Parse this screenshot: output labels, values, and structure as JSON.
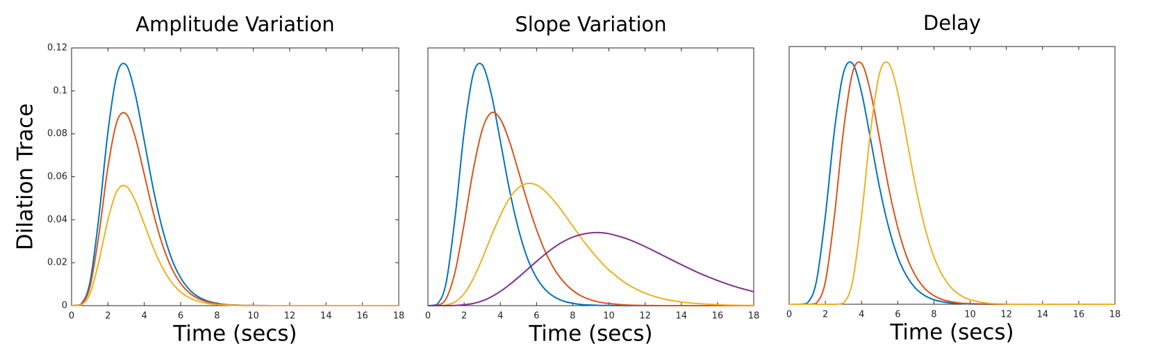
{
  "chart_data": [
    {
      "type": "line",
      "title": "Amplitude Variation",
      "xlabel": "Time (secs)",
      "ylabel": "Dilation Trace",
      "x": [
        0,
        0.5,
        1,
        1.5,
        2,
        2.5,
        3,
        3.5,
        4,
        4.5,
        5,
        5.5,
        6,
        6.5,
        7,
        7.5,
        8,
        8.5,
        9,
        9.5,
        10,
        11,
        12,
        13,
        14,
        15,
        16,
        17,
        18
      ],
      "series": [
        {
          "color": "#0072BD",
          "values": [
            0,
            0.0005,
            0.0104,
            0.0411,
            0.0808,
            0.1077,
            0.1121,
            0.0986,
            0.0767,
            0.0542,
            0.0357,
            0.022,
            0.013,
            0.0073,
            0.004,
            0.0021,
            0.0011,
            0.0005,
            0.0003,
            0.0001,
            0.0001,
            0,
            0,
            0,
            0,
            0,
            0,
            0,
            0
          ]
        },
        {
          "color": "#D95319",
          "values": [
            0,
            0.0004,
            0.0083,
            0.0328,
            0.0644,
            0.0858,
            0.0893,
            0.0786,
            0.0611,
            0.0432,
            0.0284,
            0.0176,
            0.0104,
            0.0058,
            0.0032,
            0.0017,
            0.0009,
            0.0004,
            0.0002,
            0.0001,
            0,
            0,
            0,
            0,
            0,
            0,
            0,
            0,
            0
          ]
        },
        {
          "color": "#EDB120",
          "values": [
            0,
            0.0002,
            0.0052,
            0.0204,
            0.04,
            0.0534,
            0.0556,
            0.0489,
            0.038,
            0.0269,
            0.0177,
            0.0109,
            0.0064,
            0.0036,
            0.002,
            0.001,
            0.0005,
            0.0003,
            0.0001,
            0.0001,
            0,
            0,
            0,
            0,
            0,
            0,
            0,
            0,
            0
          ]
        }
      ],
      "xlim": [
        0,
        18
      ],
      "xticks": [
        0,
        2,
        4,
        6,
        8,
        10,
        12,
        14,
        16,
        18
      ],
      "ylim": [
        0,
        0.12
      ],
      "yticks": [
        0,
        0.02,
        0.04,
        0.06,
        0.08,
        0.1,
        0.12
      ]
    },
    {
      "type": "line",
      "title": "Slope Variation",
      "xlabel": "Time (secs)",
      "x": [
        0,
        0.5,
        1,
        1.5,
        2,
        2.5,
        3,
        3.5,
        4,
        4.5,
        5,
        5.5,
        6,
        6.5,
        7,
        7.5,
        8,
        8.5,
        9,
        9.5,
        10,
        11,
        12,
        13,
        14,
        15,
        16,
        17,
        18
      ],
      "series": [
        {
          "color": "#0072BD",
          "values": [
            0,
            0.0005,
            0.0104,
            0.0411,
            0.0808,
            0.1077,
            0.1121,
            0.0986,
            0.0767,
            0.0542,
            0.0357,
            0.022,
            0.013,
            0.0073,
            0.004,
            0.0021,
            0.0011,
            0.0005,
            0.0003,
            0.0001,
            0.0001,
            0,
            0,
            0,
            0,
            0,
            0,
            0,
            0
          ]
        },
        {
          "color": "#D95319",
          "values": [
            0,
            0.0001,
            0.0032,
            0.0157,
            0.038,
            0.063,
            0.0819,
            0.0898,
            0.0869,
            0.0766,
            0.0626,
            0.0482,
            0.0354,
            0.0248,
            0.0168,
            0.0111,
            0.0071,
            0.0044,
            0.0027,
            0.0016,
            0.001,
            0.0003,
            0.0001,
            0,
            0,
            0,
            0,
            0,
            0
          ]
        },
        {
          "color": "#EDB120",
          "values": [
            0,
            0,
            0.0003,
            0.0017,
            0.0056,
            0.0125,
            0.0218,
            0.0323,
            0.042,
            0.0499,
            0.0549,
            0.0569,
            0.0562,
            0.0531,
            0.0485,
            0.043,
            0.0371,
            0.0312,
            0.0258,
            0.0209,
            0.0166,
            0.0101,
            0.0058,
            0.0032,
            0.0017,
            0.0009,
            0.0005,
            0.0002,
            0.0001
          ]
        },
        {
          "color": "#7E2F8E",
          "values": [
            0,
            0,
            0,
            0.0001,
            0.0004,
            0.001,
            0.0022,
            0.0041,
            0.0066,
            0.0097,
            0.0132,
            0.0169,
            0.0206,
            0.0241,
            0.0273,
            0.0299,
            0.0319,
            0.0332,
            0.0339,
            0.034,
            0.0335,
            0.0311,
            0.0275,
            0.0233,
            0.0191,
            0.0151,
            0.0117,
            0.0088,
            0.0065
          ]
        }
      ],
      "xlim": [
        0,
        18
      ],
      "xticks": [
        0,
        2,
        4,
        6,
        8,
        10,
        12,
        14,
        16,
        18
      ],
      "ylim": [
        0,
        0.12
      ]
    },
    {
      "type": "line",
      "title": "Delay",
      "xlabel": "Time (secs)",
      "x": [
        0,
        0.5,
        1,
        1.5,
        2,
        2.5,
        3,
        3.5,
        4,
        4.5,
        5,
        5.5,
        6,
        6.5,
        7,
        7.5,
        8,
        8.5,
        9,
        9.5,
        10,
        11,
        12,
        13,
        14,
        15,
        16,
        17,
        18
      ],
      "series": [
        {
          "color": "#0072BD",
          "values": [
            0,
            0,
            0.0005,
            0.0104,
            0.0411,
            0.0808,
            0.1077,
            0.1121,
            0.0986,
            0.0767,
            0.0542,
            0.0357,
            0.022,
            0.013,
            0.0073,
            0.004,
            0.0021,
            0.0011,
            0.0005,
            0.0003,
            0.0001,
            0,
            0,
            0,
            0,
            0,
            0,
            0,
            0
          ]
        },
        {
          "color": "#D95319",
          "values": [
            0,
            0,
            0,
            0.0005,
            0.0104,
            0.0411,
            0.0808,
            0.1077,
            0.1121,
            0.0986,
            0.0767,
            0.0542,
            0.0357,
            0.022,
            0.013,
            0.0073,
            0.004,
            0.0021,
            0.0011,
            0.0005,
            0.0003,
            0.0001,
            0,
            0,
            0,
            0,
            0,
            0,
            0
          ]
        },
        {
          "color": "#EDB120",
          "values": [
            0,
            0,
            0,
            0,
            0,
            0,
            0.0005,
            0.0104,
            0.0411,
            0.0808,
            0.1077,
            0.1121,
            0.0986,
            0.0767,
            0.0542,
            0.0357,
            0.022,
            0.013,
            0.0073,
            0.004,
            0.0021,
            0.0005,
            0.0001,
            0,
            0,
            0,
            0,
            0,
            0
          ]
        }
      ],
      "xlim": [
        0,
        18
      ],
      "xticks": [
        0,
        2,
        4,
        6,
        8,
        10,
        12,
        14,
        16,
        18
      ],
      "ylim": [
        0,
        0.12
      ]
    }
  ]
}
